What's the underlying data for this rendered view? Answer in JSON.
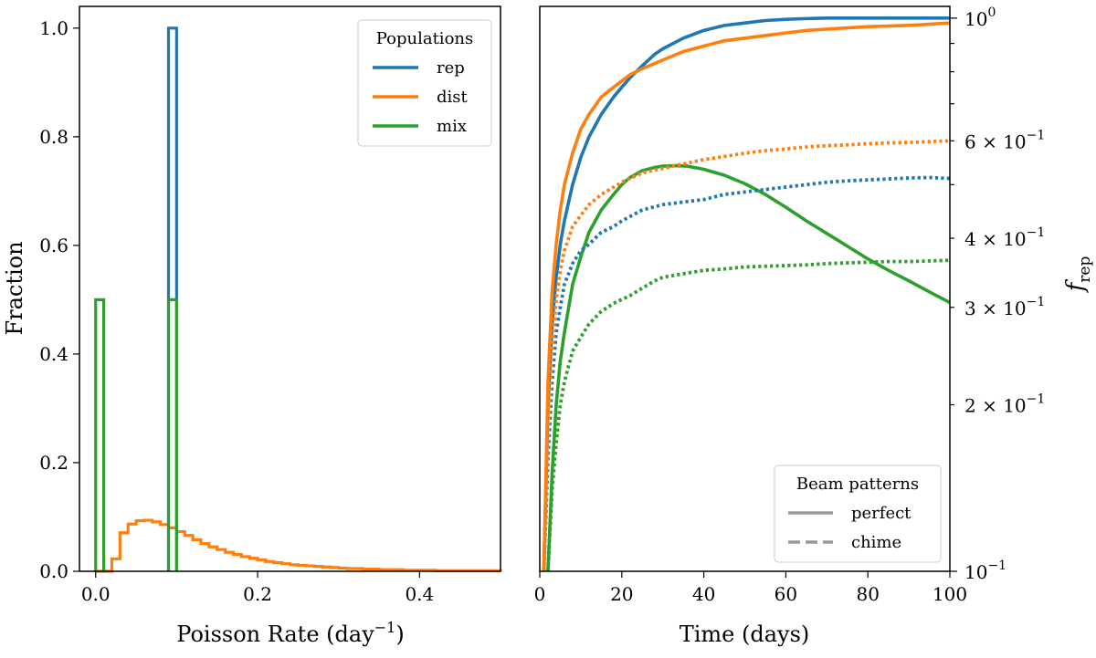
{
  "chart_data": [
    {
      "type": "histogram",
      "xlabel": "Poisson Rate (day",
      "xlabel_exp": "−1",
      "xlabel_close": ")",
      "ylabel": "Fraction",
      "xlim": [
        -0.02,
        0.5
      ],
      "ylim": [
        0,
        1.04
      ],
      "xticks": [
        {
          "value": 0.0,
          "label": "0.0"
        },
        {
          "value": 0.2,
          "label": "0.2"
        },
        {
          "value": 0.4,
          "label": "0.4"
        }
      ],
      "yticks": [
        {
          "value": 0.0,
          "label": "0.0"
        },
        {
          "value": 0.2,
          "label": "0.2"
        },
        {
          "value": 0.4,
          "label": "0.4"
        },
        {
          "value": 0.6,
          "label": "0.6"
        },
        {
          "value": 0.8,
          "label": "0.8"
        },
        {
          "value": 1.0,
          "label": "1.0"
        }
      ],
      "legend": {
        "title": "Populations",
        "position": "top-right",
        "entries": [
          {
            "label": "rep",
            "color": "#1f77b4"
          },
          {
            "label": "dist",
            "color": "#ff7f0e"
          },
          {
            "label": "mix",
            "color": "#2ca02c"
          }
        ]
      },
      "series": [
        {
          "name": "rep",
          "color": "#1f77b4",
          "bins": [
            {
              "x0": 0.09,
              "x1": 0.1,
              "value": 1.0
            }
          ]
        },
        {
          "name": "dist",
          "color": "#ff7f0e",
          "bin_start": 0.0,
          "bin_width": 0.01,
          "values": [
            0.0,
            0.0,
            0.023,
            0.071,
            0.087,
            0.093,
            0.094,
            0.091,
            0.086,
            0.08,
            0.073,
            0.066,
            0.058,
            0.051,
            0.045,
            0.04,
            0.035,
            0.031,
            0.027,
            0.024,
            0.021,
            0.018,
            0.016,
            0.014,
            0.012,
            0.011,
            0.01,
            0.009,
            0.008,
            0.007,
            0.006,
            0.005,
            0.005,
            0.004,
            0.004,
            0.003,
            0.003,
            0.003,
            0.002,
            0.002,
            0.002,
            0.002,
            0.001,
            0.001,
            0.001,
            0.001,
            0.001,
            0.001,
            0.001,
            0.001
          ]
        },
        {
          "name": "mix",
          "color": "#2ca02c",
          "bins": [
            {
              "x0": 0.0,
              "x1": 0.01,
              "value": 0.5
            },
            {
              "x0": 0.09,
              "x1": 0.1,
              "value": 0.5
            }
          ]
        }
      ]
    },
    {
      "type": "line",
      "xlabel": "Time (days)",
      "ylabel": "f",
      "ylabel_sub": "rep",
      "yscale": "log",
      "xlim": [
        0,
        100
      ],
      "ylim": [
        0.1,
        1.05
      ],
      "xticks": [
        {
          "value": 0,
          "label": "0"
        },
        {
          "value": 20,
          "label": "20"
        },
        {
          "value": 40,
          "label": "40"
        },
        {
          "value": 60,
          "label": "60"
        },
        {
          "value": 80,
          "label": "80"
        },
        {
          "value": 100,
          "label": "100"
        }
      ],
      "yticks_major": [
        {
          "value": 0.1,
          "base": "10",
          "exp": "−1"
        },
        {
          "value": 1.0,
          "base": "10",
          "exp": "0"
        }
      ],
      "yticks_minor": [
        {
          "value": 0.2,
          "mant": "2 × 10",
          "exp": "−1"
        },
        {
          "value": 0.3,
          "mant": "3 × 10",
          "exp": "−1"
        },
        {
          "value": 0.4,
          "mant": "4 × 10",
          "exp": "−1"
        },
        {
          "value": 0.6,
          "mant": "6 × 10",
          "exp": "−1"
        }
      ],
      "yticks_unlabeled": [
        0.5,
        0.7,
        0.8,
        0.9
      ],
      "legend": {
        "title": "Beam patterns",
        "position": "bottom-right",
        "entries": [
          {
            "label": "perfect",
            "style": "solid",
            "color": "#999999"
          },
          {
            "label": "chime",
            "style": "dashed",
            "color": "#999999"
          }
        ]
      },
      "series": [
        {
          "name": "rep perfect",
          "population": "rep",
          "beam": "perfect",
          "color": "#1f77b4",
          "style": "solid",
          "x": [
            1,
            2,
            3,
            4,
            5,
            6,
            8,
            10,
            12,
            15,
            18,
            20,
            22,
            25,
            28,
            30,
            35,
            40,
            45,
            50,
            55,
            60,
            65,
            70,
            75,
            80,
            90,
            100
          ],
          "y": [
            0.1,
            0.2,
            0.28,
            0.34,
            0.39,
            0.43,
            0.5,
            0.56,
            0.61,
            0.67,
            0.72,
            0.75,
            0.78,
            0.82,
            0.86,
            0.88,
            0.92,
            0.95,
            0.97,
            0.98,
            0.99,
            0.995,
            0.998,
            1.0,
            1.0,
            1.0,
            1.0,
            1.0
          ]
        },
        {
          "name": "dist perfect",
          "population": "dist",
          "beam": "perfect",
          "color": "#ff7f0e",
          "style": "solid",
          "x": [
            1,
            2,
            3,
            4,
            5,
            6,
            8,
            10,
            12,
            15,
            18,
            20,
            22,
            25,
            30,
            35,
            40,
            45,
            50,
            55,
            60,
            65,
            70,
            75,
            80,
            90,
            100
          ],
          "y": [
            0.1,
            0.22,
            0.32,
            0.39,
            0.45,
            0.5,
            0.57,
            0.63,
            0.67,
            0.72,
            0.75,
            0.77,
            0.79,
            0.81,
            0.84,
            0.87,
            0.89,
            0.91,
            0.92,
            0.93,
            0.94,
            0.95,
            0.955,
            0.96,
            0.965,
            0.97,
            0.98
          ]
        },
        {
          "name": "mix perfect",
          "population": "mix",
          "beam": "perfect",
          "color": "#2ca02c",
          "style": "solid",
          "x": [
            2,
            3,
            4,
            5,
            6,
            8,
            10,
            12,
            15,
            18,
            20,
            22,
            25,
            28,
            30,
            33,
            36,
            40,
            45,
            50,
            55,
            60,
            65,
            70,
            75,
            80,
            85,
            90,
            95,
            100
          ],
          "y": [
            0.1,
            0.15,
            0.2,
            0.24,
            0.27,
            0.33,
            0.37,
            0.41,
            0.45,
            0.48,
            0.5,
            0.515,
            0.53,
            0.537,
            0.54,
            0.541,
            0.54,
            0.533,
            0.52,
            0.502,
            0.48,
            0.455,
            0.43,
            0.408,
            0.387,
            0.367,
            0.35,
            0.335,
            0.32,
            0.306
          ]
        },
        {
          "name": "rep chime",
          "population": "rep",
          "beam": "chime",
          "color": "#1f77b4",
          "style": "dotted",
          "x": [
            1,
            2,
            3,
            4,
            5,
            6,
            8,
            10,
            12,
            15,
            18,
            20,
            25,
            30,
            35,
            40,
            45,
            50,
            55,
            60,
            65,
            70,
            75,
            80,
            85,
            90,
            95,
            100
          ],
          "y": [
            0.1,
            0.16,
            0.22,
            0.27,
            0.3,
            0.33,
            0.36,
            0.38,
            0.39,
            0.41,
            0.42,
            0.43,
            0.45,
            0.46,
            0.465,
            0.47,
            0.48,
            0.485,
            0.49,
            0.495,
            0.5,
            0.505,
            0.508,
            0.51,
            0.512,
            0.514,
            0.515,
            0.513
          ]
        },
        {
          "name": "dist chime",
          "population": "dist",
          "beam": "chime",
          "color": "#ff7f0e",
          "style": "dotted",
          "x": [
            1,
            2,
            3,
            4,
            5,
            6,
            8,
            10,
            12,
            15,
            18,
            20,
            25,
            30,
            35,
            40,
            45,
            50,
            55,
            60,
            65,
            70,
            75,
            80,
            85,
            90,
            95,
            100
          ],
          "y": [
            0.1,
            0.18,
            0.25,
            0.31,
            0.35,
            0.38,
            0.42,
            0.44,
            0.46,
            0.48,
            0.495,
            0.505,
            0.525,
            0.535,
            0.545,
            0.555,
            0.562,
            0.57,
            0.576,
            0.58,
            0.585,
            0.588,
            0.59,
            0.593,
            0.595,
            0.596,
            0.598,
            0.6
          ]
        },
        {
          "name": "mix chime",
          "population": "mix",
          "beam": "chime",
          "color": "#2ca02c",
          "style": "dotted",
          "x": [
            2,
            3,
            4,
            5,
            6,
            8,
            10,
            12,
            15,
            18,
            20,
            22,
            25,
            28,
            30,
            35,
            40,
            45,
            50,
            55,
            60,
            65,
            70,
            75,
            80,
            85,
            90,
            95,
            100
          ],
          "y": [
            0.1,
            0.14,
            0.17,
            0.2,
            0.22,
            0.25,
            0.265,
            0.28,
            0.295,
            0.305,
            0.31,
            0.315,
            0.325,
            0.335,
            0.34,
            0.345,
            0.35,
            0.352,
            0.355,
            0.356,
            0.357,
            0.358,
            0.36,
            0.361,
            0.362,
            0.363,
            0.363,
            0.364,
            0.365
          ]
        }
      ]
    }
  ]
}
